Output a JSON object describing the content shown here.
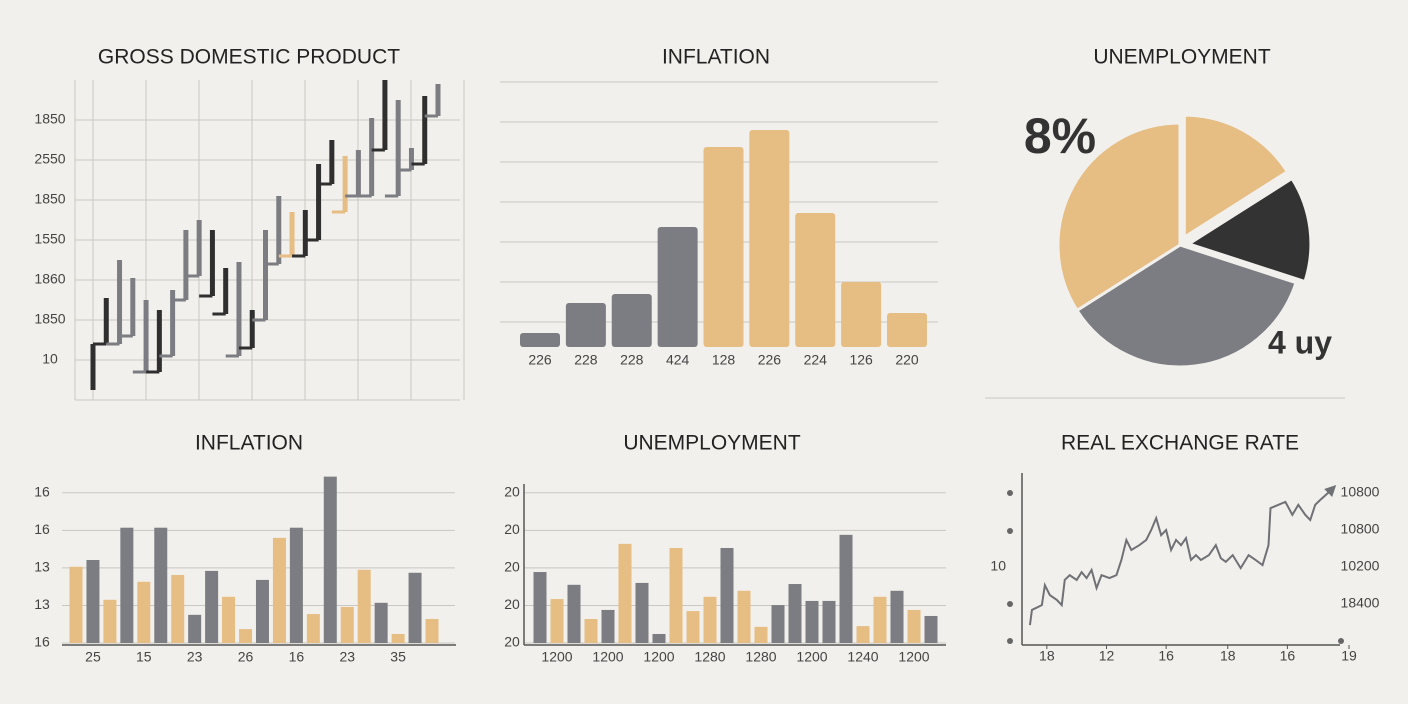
{
  "chart_data": [
    {
      "type": "candlestick",
      "title": "GROSS DOMESTIC PRODUCT",
      "low": [
        0.25,
        1.4,
        1.4,
        1.6,
        0.7,
        0.7,
        1.1,
        2.5,
        3.1,
        2.6,
        2.15,
        1.1,
        1.3,
        2.0,
        3.4,
        3.6,
        3.6,
        4.0,
        5.4,
        4.7,
        5.1,
        5.1,
        6.25,
        5.1,
        5.75,
        5.9,
        7.1
      ],
      "high": [
        1.4,
        2.55,
        3.5,
        3.05,
        2.5,
        2.25,
        2.75,
        4.25,
        4.5,
        4.25,
        3.3,
        3.45,
        2.25,
        4.25,
        5.1,
        4.7,
        4.75,
        5.9,
        6.5,
        6.1,
        6.25,
        7.05,
        8.0,
        7.5,
        6.3,
        7.6,
        7.9
      ],
      "colors": [
        "#2f2f2f",
        "#2f2f2f",
        "#7b7d82",
        "#7b7d82",
        "#7b7d82",
        "#2f2f2f",
        "#7b7d82",
        "#7b7d82",
        "#7b7d82",
        "#2f2f2f",
        "#2f2f2f",
        "#7b7d82",
        "#2f2f2f",
        "#7b7d82",
        "#7b7d82",
        "#e6bd83",
        "#2f2f2f",
        "#2f2f2f",
        "#2f2f2f",
        "#e6bd83",
        "#7b7d82",
        "#7b7d82",
        "#2f2f2f",
        "#7b7d82",
        "#7b7d82",
        "#2f2f2f",
        "#7b7d82"
      ],
      "ylim": [
        0,
        8
      ],
      "yticks": [
        {
          "value": 7,
          "label": "1850"
        },
        {
          "value": 6,
          "label": "2550"
        },
        {
          "value": 5,
          "label": "1850"
        },
        {
          "value": 4,
          "label": "1550"
        },
        {
          "value": 3,
          "label": "1860"
        },
        {
          "value": 2,
          "label": "1850"
        },
        {
          "value": 1,
          "label": "10"
        }
      ],
      "grid": true
    },
    {
      "type": "bar",
      "title": "INFLATION",
      "categories": [
        "226",
        "228",
        "228",
        "424",
        "128",
        "226",
        "224",
        "126",
        "220"
      ],
      "values": [
        14,
        44,
        53,
        120,
        200,
        217,
        134,
        65,
        34
      ],
      "colors": [
        "#7b7d82",
        "#7b7d82",
        "#7b7d82",
        "#7b7d82",
        "#e6bd83",
        "#e6bd83",
        "#e6bd83",
        "#e6bd83",
        "#e6bd83"
      ],
      "ylim": [
        0,
        265
      ],
      "yticks": [
        25,
        65,
        105,
        145,
        185,
        225,
        265
      ],
      "grid": true
    },
    {
      "type": "pie",
      "title": "UNEMPLOYMENT",
      "values": [
        16,
        14,
        36,
        34
      ],
      "colors": [
        "#e6bd83",
        "#333333",
        "#7b7d82",
        "#e6bd83"
      ],
      "exploded": [
        true,
        true,
        false,
        false
      ],
      "annotations": [
        "8%",
        "4 uy"
      ]
    },
    {
      "type": "bar",
      "title": "INFLATION",
      "categories": [
        null,
        "25",
        null,
        null,
        "15",
        null,
        null,
        "23",
        null,
        null,
        "26",
        null,
        null,
        "16",
        null,
        null,
        "23",
        null,
        null,
        "35",
        null,
        null
      ],
      "values": [
        2.03,
        2.21,
        1.15,
        3.07,
        1.63,
        3.07,
        1.81,
        0.75,
        1.92,
        1.23,
        0.37,
        1.68,
        2.8,
        3.07,
        0.77,
        4.43,
        0.96,
        1.95,
        1.07,
        0.24,
        1.87,
        0.64
      ],
      "colors": [
        "#e6bd83",
        "#7b7d82",
        "#e6bd83",
        "#7b7d82",
        "#e6bd83",
        "#7b7d82",
        "#e6bd83",
        "#7b7d82",
        "#7b7d82",
        "#e6bd83",
        "#e6bd83",
        "#7b7d82",
        "#e6bd83",
        "#7b7d82",
        "#e6bd83",
        "#7b7d82",
        "#e6bd83",
        "#e6bd83",
        "#7b7d82",
        "#e6bd83",
        "#7b7d82",
        "#e6bd83"
      ],
      "ylim": [
        0,
        4.5
      ],
      "yticks": [
        {
          "value": 4,
          "label": "16"
        },
        {
          "value": 3,
          "label": "16"
        },
        {
          "value": 2,
          "label": "13"
        },
        {
          "value": 1,
          "label": "13"
        },
        {
          "value": 0,
          "label": "16"
        }
      ],
      "grid": true
    },
    {
      "type": "bar",
      "title": "UNEMPLOYMENT",
      "categories": [
        null,
        "1200",
        null,
        null,
        "1200",
        null,
        null,
        "1200",
        null,
        null,
        "1280",
        null,
        null,
        "1280",
        null,
        null,
        "1200",
        null,
        null,
        "1240",
        null,
        null,
        "1200",
        null
      ],
      "values": [
        1.89,
        1.17,
        1.55,
        0.64,
        0.88,
        2.64,
        1.6,
        0.24,
        2.53,
        0.85,
        1.23,
        2.53,
        1.39,
        0.43,
        1.01,
        1.57,
        1.12,
        1.12,
        2.88,
        0.45,
        1.23,
        1.39,
        0.88,
        0.72
      ],
      "colors": [
        "#7b7d82",
        "#e6bd83",
        "#7b7d82",
        "#e6bd83",
        "#7b7d82",
        "#e6bd83",
        "#7b7d82",
        "#7b7d82",
        "#e6bd83",
        "#e6bd83",
        "#e6bd83",
        "#7b7d82",
        "#e6bd83",
        "#e6bd83",
        "#7b7d82",
        "#7b7d82",
        "#7b7d82",
        "#7b7d82",
        "#7b7d82",
        "#e6bd83",
        "#e6bd83",
        "#7b7d82",
        "#e6bd83",
        "#7b7d82"
      ],
      "ylim": [
        0,
        4.5
      ],
      "yticks": [
        {
          "value": 4,
          "label": "20"
        },
        {
          "value": 3,
          "label": "20"
        },
        {
          "value": 2,
          "label": "20"
        },
        {
          "value": 1,
          "label": "20"
        },
        {
          "value": 0,
          "label": "20"
        }
      ],
      "grid": true
    },
    {
      "type": "line",
      "title": "REAL EXCHANGE RATE",
      "x": [
        8,
        10,
        20,
        23,
        28,
        35,
        40,
        43,
        48,
        55,
        60,
        65,
        70,
        75,
        80,
        88,
        95,
        100,
        105,
        110,
        118,
        125,
        130,
        135,
        140,
        145,
        150,
        155,
        160,
        165,
        170,
        175,
        180,
        188,
        195,
        200,
        205,
        212,
        220,
        228,
        235,
        242,
        248,
        250,
        258,
        265,
        272,
        278,
        285,
        290,
        295,
        300
      ],
      "series": [
        {
          "color": "#6f7176",
          "values": [
            0.43,
            0.84,
            0.97,
            1.51,
            1.24,
            1.11,
            0.97,
            1.65,
            1.78,
            1.65,
            1.86,
            1.7,
            1.92,
            1.43,
            1.78,
            1.7,
            1.78,
            2.19,
            2.73,
            2.46,
            2.59,
            2.73,
            3.0,
            3.32,
            2.86,
            3.0,
            2.46,
            2.73,
            2.59,
            2.78,
            2.19,
            2.32,
            2.19,
            2.32,
            2.59,
            2.24,
            2.14,
            2.32,
            1.97,
            2.32,
            2.19,
            2.05,
            2.59,
            3.59,
            3.68,
            3.76,
            3.41,
            3.68,
            3.41,
            3.27,
            3.68,
            3.81
          ]
        }
      ],
      "xlim": [
        0,
        330
      ],
      "xticks": [
        {
          "value": 25,
          "label": "18"
        },
        {
          "value": 85,
          "label": "12"
        },
        {
          "value": 145,
          "label": "16"
        },
        {
          "value": 207,
          "label": "18"
        },
        {
          "value": 267,
          "label": "16"
        },
        {
          "value": 329,
          "label": "19"
        }
      ],
      "ylim": [
        0,
        4
      ],
      "yticks": [
        {
          "value": 2,
          "label": "10"
        }
      ],
      "y2lim": [
        0,
        4
      ],
      "y2ticks": [
        {
          "value": 4,
          "label": "10800"
        },
        {
          "value": 3,
          "label": "10800"
        },
        {
          "value": 2,
          "label": "10200"
        },
        {
          "value": 1,
          "label": "18400"
        }
      ]
    }
  ]
}
